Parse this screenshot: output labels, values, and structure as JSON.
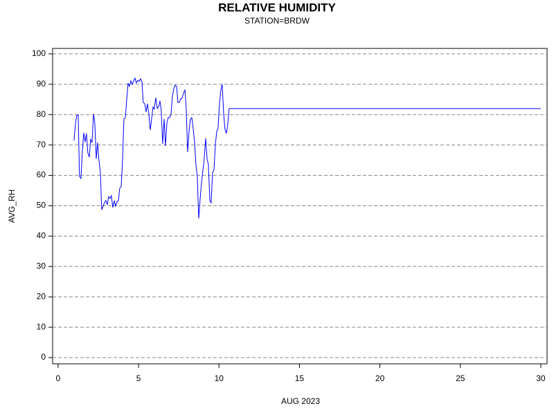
{
  "chart_data": {
    "type": "line",
    "title": "RELATIVE HUMIDITY",
    "subtitle": "STATION=BRDW",
    "x_label": "AUG 2023",
    "y_label": "AVG_RH",
    "x": [
      0.99,
      1.08,
      1.16,
      1.25,
      1.33,
      1.42,
      1.5,
      1.59,
      1.68,
      1.76,
      1.85,
      1.94,
      2.02,
      2.11,
      2.2,
      2.28,
      2.37,
      2.45,
      2.54,
      2.63,
      2.71,
      2.8,
      2.88,
      2.97,
      3.06,
      3.14,
      3.23,
      3.31,
      3.4,
      3.49,
      3.57,
      3.66,
      3.75,
      3.83,
      3.92,
      4.0,
      4.09,
      4.18,
      4.26,
      4.35,
      4.43,
      4.52,
      4.61,
      4.69,
      4.78,
      4.86,
      4.95,
      5.04,
      5.12,
      5.21,
      5.29,
      5.38,
      5.47,
      5.55,
      5.64,
      5.73,
      5.81,
      5.9,
      5.98,
      6.07,
      6.16,
      6.24,
      6.33,
      6.41,
      6.5,
      6.59,
      6.67,
      6.76,
      6.84,
      6.93,
      7.02,
      7.1,
      7.19,
      7.27,
      7.36,
      7.45,
      7.53,
      7.62,
      7.7,
      7.79,
      7.88,
      7.96,
      8.05,
      8.14,
      8.22,
      8.31,
      8.39,
      8.48,
      8.57,
      8.65,
      8.74,
      8.82,
      8.91,
      9.0,
      9.08,
      9.17,
      9.26,
      9.34,
      9.43,
      9.51,
      9.6,
      9.69,
      9.77,
      9.86,
      9.94,
      10.03,
      10.12,
      10.2,
      10.29,
      10.37,
      10.46,
      10.55,
      10.63,
      30
    ],
    "series": [
      {
        "name": "AVG_RH",
        "color": "#0000ff",
        "values": [
          71.5,
          77.2,
          79.7,
          80,
          59.7,
          59,
          67.2,
          74,
          71,
          73.8,
          67.4,
          66,
          71.8,
          70.8,
          80.2,
          77.4,
          65.4,
          70.8,
          64.9,
          60.8,
          48.7,
          49.9,
          51,
          51.7,
          50.3,
          53,
          52.4,
          53.3,
          49.4,
          51.7,
          49.9,
          51.3,
          51.7,
          55.8,
          56.3,
          64.2,
          78.6,
          79,
          84.7,
          90.4,
          89.3,
          91.1,
          90,
          91.1,
          92,
          90.4,
          91.3,
          90.9,
          91.8,
          90.9,
          84,
          83.6,
          80.9,
          83.6,
          80.2,
          74.9,
          78.6,
          82.5,
          81.8,
          85.6,
          82,
          82.5,
          84.5,
          81.3,
          70.4,
          78.6,
          69.7,
          77.2,
          79,
          79,
          80.2,
          85.9,
          88.6,
          89.7,
          89.3,
          84,
          84,
          85.2,
          85.4,
          87,
          88.2,
          82.5,
          67.7,
          74.5,
          78.4,
          79,
          75.6,
          71.1,
          63.1,
          59.7,
          45.8,
          51.7,
          57.4,
          61.7,
          65.4,
          72.2,
          65.4,
          63.6,
          51.7,
          51,
          60.8,
          62,
          69.9,
          74.5,
          75.6,
          83.6,
          88.2,
          90,
          80.2,
          75.2,
          73.8,
          77.2,
          82,
          82
        ]
      }
    ],
    "xlim": [
      -0.34,
      30.39
    ],
    "xticks": [
      0,
      5,
      10,
      15,
      20,
      25,
      30
    ],
    "ylim": [
      -2.05,
      101.8
    ],
    "yticks": [
      0,
      10,
      20,
      30,
      40,
      50,
      60,
      70,
      80,
      90,
      100
    ],
    "grid": true
  }
}
